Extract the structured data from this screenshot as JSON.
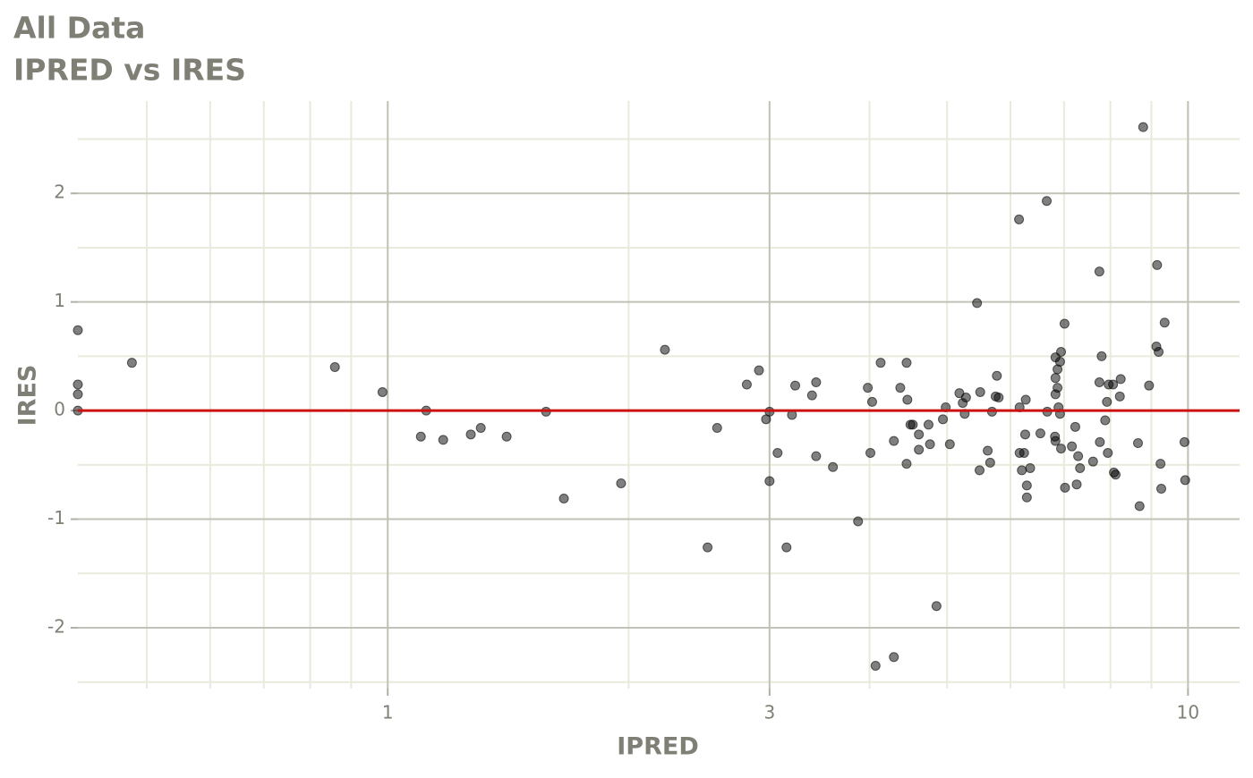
{
  "chart_data": {
    "type": "scatter",
    "title": "All Data",
    "subtitle": "IPRED vs IRES",
    "x_label": "IPRED",
    "y_label": "IRES",
    "x_log": true,
    "grid": true,
    "color": "#000000",
    "reference_line": {
      "y": 0,
      "color": "#cc1111"
    },
    "xlim": [
      0.41,
      11.6
    ],
    "xticks": [
      1,
      3,
      10
    ],
    "ylim": [
      -2.56,
      2.85
    ],
    "yticks": [
      -2,
      -1,
      0,
      1,
      2
    ],
    "x": [
      0.41,
      0.41,
      0.41,
      0.41,
      0.479,
      0.859,
      0.985,
      1.1,
      1.117,
      1.173,
      1.27,
      1.307,
      1.408,
      1.577,
      1.66,
      1.957,
      2.22,
      2.51,
      2.58,
      2.81,
      2.91,
      2.97,
      3.0,
      3.0,
      3.07,
      3.15,
      3.2,
      3.23,
      3.39,
      3.43,
      3.43,
      3.6,
      3.87,
      3.98,
      4.01,
      4.03,
      4.07,
      4.13,
      4.29,
      4.29,
      4.37,
      4.45,
      4.45,
      4.46,
      4.5,
      4.53,
      4.61,
      4.61,
      4.74,
      4.76,
      4.85,
      4.94,
      4.98,
      5.04,
      5.18,
      5.23,
      5.26,
      5.28,
      5.45,
      5.5,
      5.49,
      5.62,
      5.66,
      5.69,
      5.75,
      5.77,
      5.8,
      6.15,
      6.16,
      6.16,
      6.2,
      6.24,
      6.26,
      6.27,
      6.29,
      6.29,
      6.35,
      6.54,
      6.66,
      6.67,
      6.83,
      6.82,
      6.83,
      6.83,
      6.83,
      6.87,
      6.87,
      6.89,
      6.92,
      6.92,
      6.94,
      6.94,
      7.01,
      7.02,
      7.16,
      7.23,
      7.26,
      7.29,
      7.33,
      7.61,
      7.75,
      7.75,
      7.76,
      7.8,
      7.88,
      7.92,
      7.94,
      7.96,
      8.06,
      8.08,
      8.12,
      8.22,
      8.24,
      8.66,
      8.7,
      8.79,
      8.94,
      9.13,
      9.15,
      9.19,
      9.24,
      9.26,
      9.35,
      9.9,
      9.92
    ],
    "y": [
      0.74,
      0.24,
      0.15,
      0,
      0.44,
      0.4,
      0.17,
      -0.24,
      0.0,
      -0.27,
      -0.22,
      -0.16,
      -0.24,
      -0.01,
      -0.81,
      -0.67,
      0.56,
      -1.26,
      -0.16,
      0.24,
      0.37,
      -0.08,
      -0.65,
      -0.01,
      -0.39,
      -1.26,
      -0.04,
      0.23,
      0.14,
      0.26,
      -0.42,
      -0.52,
      -1.02,
      0.21,
      -0.39,
      0.08,
      -2.35,
      0.44,
      -2.27,
      -0.28,
      0.21,
      0.44,
      -0.49,
      0.1,
      -0.13,
      -0.13,
      -0.22,
      -0.36,
      -0.13,
      -0.31,
      -1.8,
      -0.08,
      0.03,
      -0.31,
      0.16,
      0.07,
      -0.03,
      0.12,
      0.99,
      0.17,
      -0.55,
      -0.37,
      -0.48,
      -0.01,
      0.13,
      0.32,
      0.12,
      1.76,
      0.03,
      -0.39,
      -0.55,
      -0.39,
      -0.22,
      0.1,
      -0.69,
      -0.8,
      -0.53,
      -0.21,
      1.93,
      -0.01,
      0.15,
      -0.24,
      -0.28,
      0.3,
      0.49,
      0.38,
      0.21,
      0.03,
      0.45,
      -0.03,
      -0.35,
      0.54,
      0.8,
      -0.71,
      -0.33,
      -0.15,
      -0.68,
      -0.42,
      -0.53,
      -0.47,
      1.28,
      0.26,
      -0.29,
      0.5,
      -0.09,
      0.08,
      -0.39,
      0.24,
      0.24,
      -0.57,
      -0.59,
      0.13,
      0.29,
      -0.3,
      -0.88,
      2.61,
      0.23,
      0.59,
      1.34,
      0.54,
      -0.49,
      -0.72,
      0.81,
      -0.29,
      -0.64
    ]
  }
}
